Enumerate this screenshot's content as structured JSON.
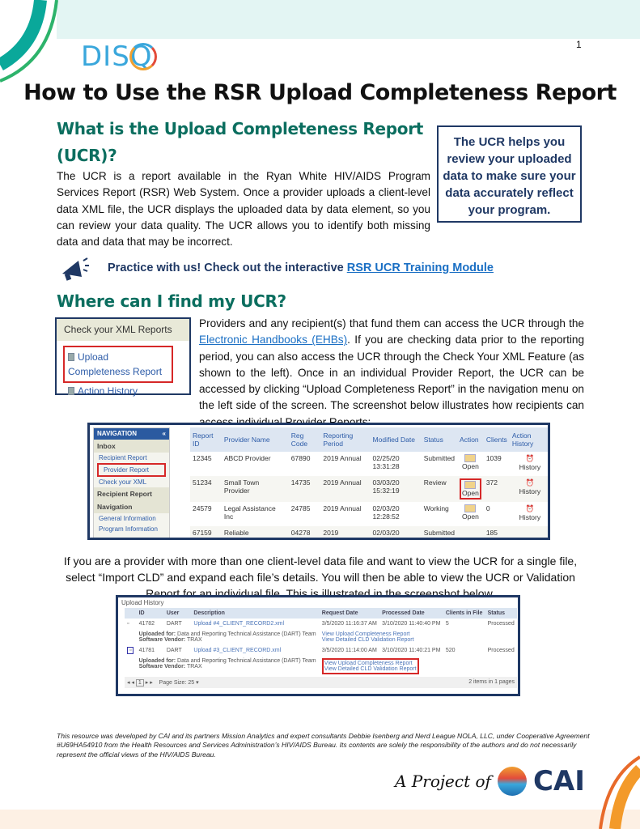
{
  "page_number": "1",
  "logo": {
    "text": "DISQ"
  },
  "title": "How to Use the RSR Upload Completeness Report",
  "section1": {
    "heading_line1": "What is the Upload Completeness Report",
    "heading_line2": "(UCR)?",
    "body": "The UCR is a report available in the Ryan White HIV/AIDS Program Services Report (RSR) Web System. Once a provider uploads a client-level data XML file, the UCR displays the uploaded data by data element, so you can review your data quality. The UCR allows you to identify both missing data and data that may be incorrect."
  },
  "callout": "The UCR helps you review your uploaded data to make sure your data accurately reflect your program.",
  "practice": {
    "text": "Practice with us! Check out the interactive ",
    "link": "RSR UCR Training Module",
    "icon": "megaphone-icon"
  },
  "section2": {
    "heading": "Where can I find my UCR?",
    "body_before": "Providers and any recipient(s) that fund them can access the UCR through the ",
    "link": "Electronic Handbooks (EHBs)",
    "body_after": ". If you are checking data prior to the reporting period, you can also access the UCR through the Check Your XML Feature (as shown to the left). Once in an individual Provider Report, the UCR can be accessed by clicking “Upload Completeness Report” in the navigation menu on the left side of the screen. The screenshot below illustrates how recipients can access individual Provider Reports:"
  },
  "xml_box": {
    "header": "Check your XML Reports",
    "items": [
      "Upload Completeness Report",
      "Action History"
    ]
  },
  "shot1": {
    "nav": {
      "header": "NAVIGATION",
      "collapse": "«",
      "inbox": "Inbox",
      "inbox_items": [
        "Recipient Report",
        "Provider Report",
        "Check your XML"
      ],
      "recipient_report": "Recipient Report",
      "navigation": "Navigation",
      "nav_items": [
        "General Information",
        "Program Information"
      ]
    },
    "columns": [
      "Report ID",
      "Provider Name",
      "Reg Code",
      "Reporting Period",
      "Modified Date",
      "Status",
      "Action",
      "Clients",
      "Action History"
    ],
    "rows": [
      [
        "12345",
        "ABCD Provider",
        "67890",
        "2019 Annual",
        "02/25/20 13:31:28",
        "Submitted",
        "Open",
        "1039",
        "History"
      ],
      [
        "51234",
        "Small Town Provider",
        "14735",
        "2019 Annual",
        "03/03/20 15:32:19",
        "Review",
        "Open",
        "372",
        "History"
      ],
      [
        "24579",
        "Legal Assistance Inc",
        "24785",
        "2019 Annual",
        "02/03/20 12:28:52",
        "Working",
        "Open",
        "0",
        "History"
      ],
      [
        "67159",
        "Reliable Transportation",
        "04278",
        "2019",
        "02/03/20",
        "Submitted",
        "",
        "185",
        ""
      ]
    ]
  },
  "caption": "If you are a provider with more than one client-level data file and want to view the UCR for a single file, select “Import CLD” and expand each file’s details. You will then be able to view the UCR or Validation Report for an individual file. This is illustrated in the screenshot below.",
  "shot2": {
    "title": "Upload History",
    "columns": [
      "",
      "ID",
      "User",
      "Description",
      "Request Date",
      "Processed Date",
      "Clients in File",
      "Status"
    ],
    "rows": [
      {
        "id": "41782",
        "user": "DART",
        "description": "Upload #4_CLIENT_RECORD2.xml",
        "request": "3/5/2020 11:16:37 AM",
        "processed": "3/10/2020 11:40:40 PM",
        "clients": "5",
        "status": "Processed",
        "uploaded_for_label": "Uploaded for:",
        "uploaded_for": "Data and Reporting Technical Assistance (DART) Team",
        "vendor_label": "Software Vendor:",
        "vendor": "TRAX",
        "links": [
          "View Upload Completeness Report",
          "View Detailed CLD Validation Report"
        ]
      },
      {
        "id": "41781",
        "user": "DART",
        "description": "Upload #3_CLIENT_RECORD.xml",
        "request": "3/5/2020 11:14:00 AM",
        "processed": "3/10/2020 11:40:21 PM",
        "clients": "520",
        "status": "Processed",
        "uploaded_for_label": "Uploaded for:",
        "uploaded_for": "Data and Reporting Technical Assistance (DART) Team",
        "vendor_label": "Software Vendor:",
        "vendor": "TRAX",
        "links": [
          "View Upload Completeness Report",
          "View Detailed CLD Validation Report"
        ]
      }
    ],
    "pager": {
      "page": "1",
      "page_size_label": "Page Size:",
      "page_size": "25",
      "summary": "2 items in 1 pages"
    }
  },
  "footer": "This resource was developed by CAI and its partners Mission Analytics and expert consultants Debbie Isenberg and Nerd League NOLA, LLC, under Cooperative Agreement #U69HA54910 from the Health Resources and Services Administration’s HIV/AIDS Bureau. Its contents are solely the responsibility of the authors and do not necessarily represent the official views of the HIV/AIDS Bureau.",
  "cai_logo": {
    "script": "A Project of",
    "text": "CAI"
  },
  "colors": {
    "teal_heading": "#0b6e5f",
    "navy": "#1f3864",
    "link": "#1a6fc4",
    "logo_blue": "#3aa7dc",
    "highlight_red": "#d62828"
  }
}
